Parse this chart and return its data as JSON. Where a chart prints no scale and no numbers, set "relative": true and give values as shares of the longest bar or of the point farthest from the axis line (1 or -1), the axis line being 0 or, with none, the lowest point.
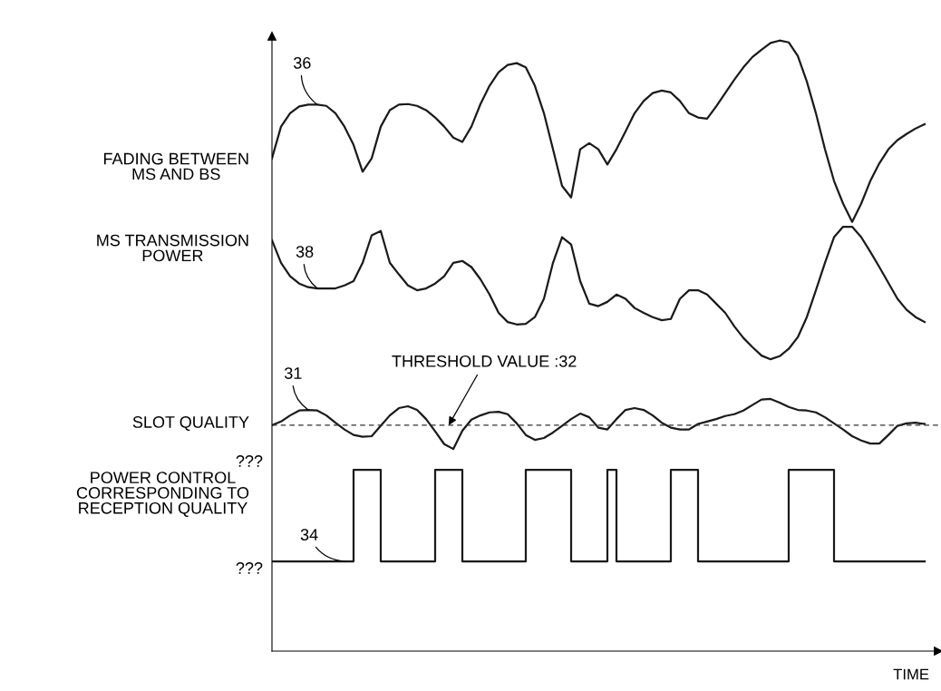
{
  "chart_data": {
    "type": "line",
    "relative": true,
    "xlabel": "TIME",
    "legend": false,
    "grid": false,
    "categories": [
      null,
      null,
      null,
      null,
      null,
      null,
      null,
      null,
      null,
      null,
      null,
      null,
      null,
      null,
      null,
      null,
      null,
      null,
      null,
      null,
      null,
      null,
      null,
      null,
      null,
      null,
      null,
      null,
      null,
      null,
      null,
      null,
      null,
      null,
      null,
      null,
      null,
      null,
      null,
      null,
      null,
      null,
      null,
      null,
      null,
      null,
      null,
      null,
      null,
      null,
      null,
      null,
      null,
      null,
      null,
      null,
      null,
      null,
      null,
      null,
      null,
      null,
      null,
      null,
      null,
      null,
      null,
      null,
      null,
      null,
      null,
      null,
      null
    ],
    "series": [
      {
        "name": "36",
        "color": "#1a1a1a",
        "values": [
          0.807,
          0.859,
          0.881,
          0.892,
          0.895,
          0.895,
          0.893,
          0.881,
          0.859,
          0.829,
          0.785,
          0.807,
          0.859,
          0.886,
          0.895,
          0.896,
          0.893,
          0.886,
          0.874,
          0.859,
          0.841,
          0.834,
          0.859,
          0.896,
          0.926,
          0.948,
          0.96,
          0.963,
          0.956,
          0.926,
          0.881,
          0.822,
          0.762,
          0.743,
          0.822,
          0.832,
          0.822,
          0.797,
          0.822,
          0.851,
          0.881,
          0.901,
          0.914,
          0.918,
          0.915,
          0.901,
          0.881,
          0.874,
          0.872,
          0.892,
          0.914,
          0.936,
          0.956,
          0.973,
          0.985,
          0.996,
          1,
          0.997,
          0.975,
          0.933,
          0.881,
          0.822,
          0.77,
          0.733,
          0.703,
          0.733,
          0.77,
          0.799,
          0.822,
          0.837,
          0.847,
          0.856,
          0.863
        ]
      },
      {
        "name": "38",
        "color": "#1a1a1a",
        "values": [
          0.673,
          0.636,
          0.614,
          0.602,
          0.596,
          0.594,
          0.594,
          0.594,
          0.599,
          0.606,
          0.636,
          0.681,
          0.688,
          0.636,
          0.617,
          0.599,
          0.591,
          0.594,
          0.602,
          0.614,
          0.636,
          0.639,
          0.629,
          0.609,
          0.584,
          0.554,
          0.539,
          0.535,
          0.536,
          0.547,
          0.577,
          0.636,
          0.678,
          0.666,
          0.606,
          0.569,
          0.565,
          0.572,
          0.584,
          0.577,
          0.562,
          0.554,
          0.547,
          0.542,
          0.544,
          0.577,
          0.591,
          0.591,
          0.584,
          0.569,
          0.554,
          0.532,
          0.513,
          0.498,
          0.484,
          0.478,
          0.483,
          0.495,
          0.514,
          0.547,
          0.591,
          0.636,
          0.678,
          0.695,
          0.695,
          0.678,
          0.654,
          0.629,
          0.603,
          0.577,
          0.559,
          0.547,
          0.539
        ]
      },
      {
        "name": "31",
        "color": "#1a1a1a",
        "values": [
          0.37,
          0.376,
          0.386,
          0.394,
          0.395,
          0.394,
          0.386,
          0.374,
          0.363,
          0.354,
          0.351,
          0.352,
          0.369,
          0.386,
          0.398,
          0.401,
          0.395,
          0.38,
          0.36,
          0.339,
          0.331,
          0.361,
          0.379,
          0.386,
          0.391,
          0.392,
          0.388,
          0.373,
          0.354,
          0.346,
          0.349,
          0.358,
          0.369,
          0.38,
          0.389,
          0.383,
          0.366,
          0.363,
          0.38,
          0.395,
          0.398,
          0.395,
          0.386,
          0.374,
          0.366,
          0.363,
          0.363,
          0.372,
          0.376,
          0.38,
          0.385,
          0.388,
          0.394,
          0.403,
          0.412,
          0.413,
          0.407,
          0.4,
          0.395,
          0.394,
          0.391,
          0.383,
          0.373,
          0.363,
          0.352,
          0.345,
          0.34,
          0.34,
          0.354,
          0.369,
          0.373,
          0.374,
          0.372
        ]
      },
      {
        "name": "34",
        "type": "step",
        "color": "#1a1a1a",
        "values": [
          0.147,
          0.147,
          0.147,
          0.147,
          0.147,
          0.147,
          0.147,
          0.147,
          0.147,
          0.297,
          0.297,
          0.297,
          0.147,
          0.147,
          0.147,
          0.147,
          0.147,
          0.147,
          0.297,
          0.297,
          0.297,
          0.147,
          0.147,
          0.147,
          0.147,
          0.147,
          0.147,
          0.147,
          0.297,
          0.297,
          0.297,
          0.297,
          0.297,
          0.147,
          0.147,
          0.147,
          0.147,
          0.297,
          0.147,
          0.147,
          0.147,
          0.147,
          0.147,
          0.147,
          0.297,
          0.297,
          0.297,
          0.147,
          0.147,
          0.147,
          0.147,
          0.147,
          0.147,
          0.147,
          0.147,
          0.147,
          0.147,
          0.297,
          0.297,
          0.297,
          0.297,
          0.297,
          0.147,
          0.147,
          0.147,
          0.147,
          0.147,
          0.147,
          0.147,
          0.147,
          0.147,
          0.147,
          0.147
        ]
      }
    ],
    "ref_lines": [
      {
        "axis": "y",
        "value": 0.37,
        "color": "#333333",
        "line_style": "dashed"
      }
    ],
    "annotations": [
      "FADING BETWEEN\nMS AND BS",
      "MS TRANSMISSION\nPOWER",
      "SLOT QUALITY",
      "POWER CONTROL\nCORRESPONDING TO\nRECEPTION QUALITY",
      "???",
      "???",
      "THRESHOLD VALUE :32"
    ]
  }
}
